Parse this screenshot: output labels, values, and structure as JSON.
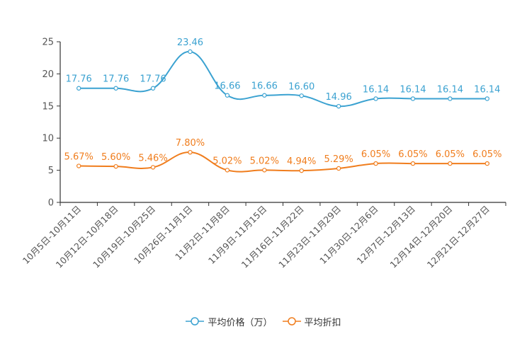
{
  "chart_data": {
    "type": "line",
    "categories": [
      "10月5日-10月11日",
      "10月12日-10月18日",
      "10月19日-10月25日",
      "10月26日-11月1日",
      "11月2日-11月8日",
      "11月9日-11月15日",
      "11月16日-11月22日",
      "11月23日-11月29日",
      "11月30日-12月6日",
      "12月7日-12月13日",
      "12月14日-12月20日",
      "12月21日-12月27日"
    ],
    "series": [
      {
        "name": "平均价格（万）",
        "color": "#3ba2d1",
        "values": [
          17.76,
          17.76,
          17.76,
          23.46,
          16.66,
          16.66,
          16.6,
          14.96,
          16.14,
          16.14,
          16.14,
          16.14
        ],
        "labels": [
          "17.76",
          "17.76",
          "17.76",
          "23.46",
          "16.66",
          "16.66",
          "16.60",
          "14.96",
          "16.14",
          "16.14",
          "16.14",
          "16.14"
        ]
      },
      {
        "name": "平均折扣",
        "color": "#f07d1d",
        "values": [
          5.67,
          5.6,
          5.46,
          7.8,
          5.02,
          5.02,
          4.94,
          5.29,
          6.05,
          6.05,
          6.05,
          6.05
        ],
        "labels": [
          "5.67%",
          "5.60%",
          "5.46%",
          "7.80%",
          "5.02%",
          "5.02%",
          "4.94%",
          "5.29%",
          "6.05%",
          "6.05%",
          "6.05%",
          "6.05%"
        ]
      }
    ],
    "ylim": [
      0,
      25
    ],
    "yticks": [
      "0",
      "5",
      "10",
      "15",
      "20",
      "25"
    ],
    "title": "",
    "xlabel": "",
    "ylabel": "",
    "legend": "bottom-center",
    "grid": false
  }
}
